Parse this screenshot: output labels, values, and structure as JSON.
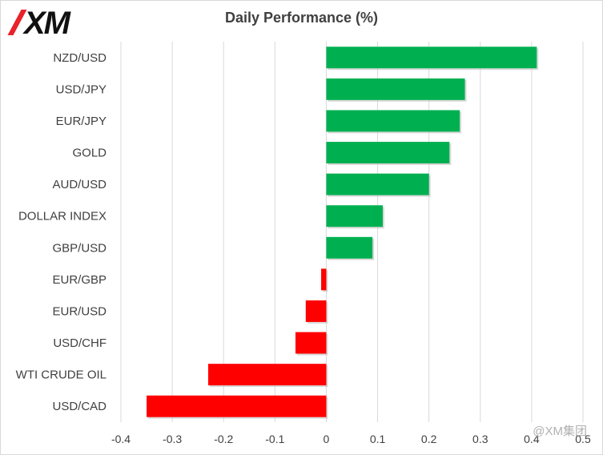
{
  "logo": {
    "text": "XM"
  },
  "watermark": {
    "text": "@XM集团"
  },
  "colors": {
    "positive": "#00b050",
    "negative": "#ff0000",
    "grid": "#d9d9d9",
    "text": "#404040"
  },
  "chart_data": {
    "type": "bar",
    "orientation": "horizontal",
    "title": "Daily Performance (%)",
    "xlabel": "",
    "ylabel": "",
    "xlim": [
      -0.4,
      0.5
    ],
    "xticks": [
      "-0.4",
      "-0.3",
      "-0.2",
      "-0.1",
      "0",
      "0.1",
      "0.2",
      "0.3",
      "0.4",
      "0.5"
    ],
    "grid": "vertical",
    "categories": [
      "NZD/USD",
      "USD/JPY",
      "EUR/JPY",
      "GOLD",
      "AUD/USD",
      "DOLLAR INDEX",
      "GBP/USD",
      "EUR/GBP",
      "EUR/USD",
      "USD/CHF",
      "WTI CRUDE OIL",
      "USD/CAD"
    ],
    "values": [
      0.41,
      0.27,
      0.26,
      0.24,
      0.2,
      0.11,
      0.09,
      -0.01,
      -0.04,
      -0.06,
      -0.23,
      -0.35
    ]
  }
}
